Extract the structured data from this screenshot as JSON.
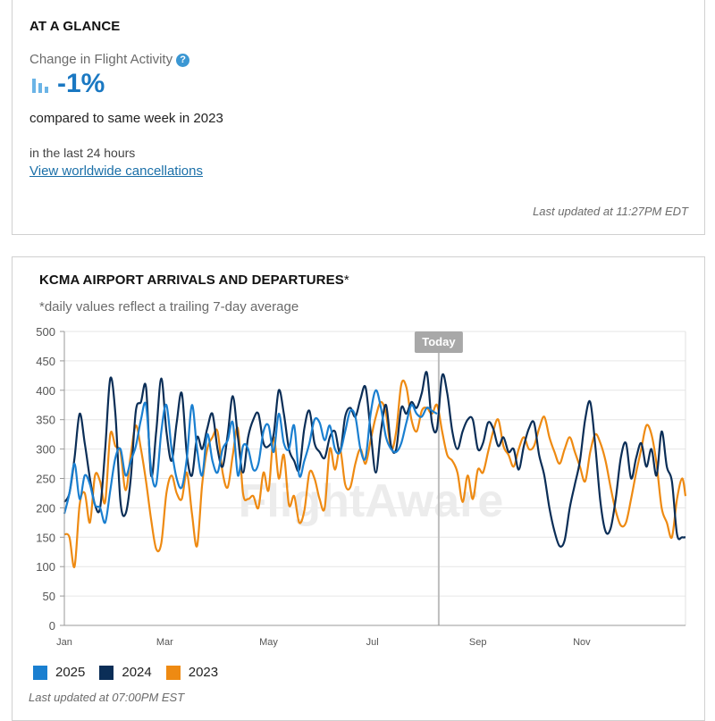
{
  "glance": {
    "title": "AT A GLANCE",
    "change_label": "Change in Flight Activity",
    "help_icon": "question-circle-icon",
    "bar_icon": "bar-chart-icon",
    "change_value": "-1%",
    "compared_text": "compared to same week in 2023",
    "clipped_text": "in the last 24 hours",
    "link_text": "View worldwide cancellations",
    "updated": "Last updated at 11:27PM EDT"
  },
  "chart_card": {
    "title": "KCMA AIRPORT ARRIVALS AND DEPARTURES",
    "title_suffix": "*",
    "note": "*daily values reflect a trailing 7-day average",
    "today_label": "Today",
    "watermark": "FlightAware",
    "updated": "Last updated at 07:00PM EST"
  },
  "chart_data": {
    "type": "line",
    "title": "KCMA AIRPORT ARRIVALS AND DEPARTURES*",
    "xlabel": "",
    "ylabel": "",
    "ylim": [
      0,
      500
    ],
    "xlim": [
      1,
      366
    ],
    "x_unit": "day of year",
    "yticks": [
      0,
      50,
      100,
      150,
      200,
      250,
      300,
      350,
      400,
      450,
      500
    ],
    "xticks": [
      {
        "label": "Jan",
        "day": 1
      },
      {
        "label": "Mar",
        "day": 60
      },
      {
        "label": "May",
        "day": 121
      },
      {
        "label": "Jul",
        "day": 182
      },
      {
        "label": "Sep",
        "day": 244
      },
      {
        "label": "Nov",
        "day": 305
      }
    ],
    "today_day": 221,
    "grid": true,
    "legend_position": "bottom-left",
    "colors": {
      "2025": "#1a7fd0",
      "2024": "#0b2e57",
      "2023": "#ee8a12"
    },
    "series": [
      {
        "name": "2025",
        "color": "#1a7fd0",
        "x": [
          1,
          4,
          7,
          10,
          13,
          16,
          19,
          22,
          25,
          28,
          31,
          34,
          37,
          40,
          43,
          46,
          49,
          52,
          55,
          58,
          61,
          64,
          67,
          70,
          73,
          76,
          79,
          82,
          85,
          88,
          91,
          94,
          97,
          100,
          103,
          106,
          109,
          112,
          115,
          118,
          121,
          124,
          127,
          130,
          133,
          136,
          139,
          142,
          145,
          148,
          151,
          154,
          157,
          160,
          163,
          166,
          169,
          172,
          175,
          178,
          181,
          184,
          187,
          190,
          193,
          196,
          199,
          202,
          205,
          208,
          211,
          214,
          217,
          220
        ],
        "y": [
          190,
          225,
          275,
          215,
          255,
          240,
          205,
          200,
          175,
          230,
          285,
          300,
          255,
          280,
          305,
          350,
          375,
          265,
          240,
          330,
          375,
          300,
          250,
          235,
          285,
          375,
          300,
          255,
          325,
          280,
          260,
          300,
          315,
          345,
          255,
          305,
          300,
          265,
          275,
          330,
          340,
          295,
          360,
          310,
          300,
          340,
          255,
          280,
          310,
          350,
          345,
          315,
          340,
          300,
          295,
          330,
          365,
          355,
          300,
          285,
          360,
          400,
          370,
          320,
          300,
          295,
          310,
          345,
          375,
          360,
          355,
          370,
          365,
          360
        ]
      },
      {
        "name": "2024",
        "color": "#0b2e57",
        "x": [
          1,
          4,
          7,
          10,
          13,
          16,
          19,
          22,
          25,
          28,
          31,
          34,
          37,
          40,
          43,
          46,
          49,
          52,
          55,
          58,
          61,
          64,
          67,
          70,
          73,
          76,
          79,
          82,
          85,
          88,
          91,
          94,
          97,
          100,
          103,
          106,
          109,
          112,
          115,
          118,
          121,
          124,
          127,
          130,
          133,
          136,
          139,
          142,
          145,
          148,
          151,
          154,
          157,
          160,
          163,
          166,
          169,
          172,
          175,
          178,
          181,
          184,
          187,
          190,
          193,
          196,
          199,
          202,
          205,
          208,
          211,
          214,
          217,
          220,
          223,
          226,
          229,
          232,
          235,
          238,
          241,
          244,
          247,
          250,
          253,
          256,
          259,
          262,
          265,
          268,
          271,
          274,
          277,
          280,
          283,
          286,
          289,
          292,
          295,
          298,
          301,
          304,
          307,
          310,
          313,
          316,
          319,
          322,
          325,
          328,
          331,
          334,
          337,
          340,
          343,
          346,
          349,
          352,
          355,
          358,
          361,
          364,
          366
        ],
        "y": [
          210,
          225,
          285,
          360,
          310,
          250,
          205,
          200,
          300,
          420,
          360,
          210,
          190,
          250,
          365,
          380,
          405,
          255,
          330,
          420,
          330,
          280,
          345,
          395,
          290,
          255,
          320,
          300,
          335,
          360,
          300,
          270,
          325,
          390,
          320,
          260,
          320,
          350,
          360,
          310,
          305,
          325,
          400,
          360,
          300,
          280,
          265,
          335,
          365,
          310,
          295,
          285,
          320,
          330,
          295,
          355,
          370,
          355,
          385,
          405,
          330,
          260,
          330,
          375,
          305,
          300,
          370,
          360,
          380,
          370,
          395,
          430,
          345,
          335,
          425,
          395,
          330,
          300,
          330,
          350,
          350,
          300,
          310,
          345,
          335,
          305,
          320,
          295,
          300,
          265,
          305,
          335,
          345,
          290,
          255,
          200,
          160,
          135,
          145,
          200,
          240,
          280,
          350,
          380,
          305,
          210,
          160,
          165,
          215,
          285,
          310,
          250,
          285,
          310,
          270,
          300,
          255,
          330,
          270,
          245,
          155,
          150,
          150
        ]
      },
      {
        "name": "2023",
        "color": "#ee8a12",
        "x": [
          1,
          4,
          7,
          10,
          13,
          16,
          19,
          22,
          25,
          28,
          31,
          34,
          37,
          40,
          43,
          46,
          49,
          52,
          55,
          58,
          61,
          64,
          67,
          70,
          73,
          76,
          79,
          82,
          85,
          88,
          91,
          94,
          97,
          100,
          103,
          106,
          109,
          112,
          115,
          118,
          121,
          124,
          127,
          130,
          133,
          136,
          139,
          142,
          145,
          148,
          151,
          154,
          157,
          160,
          163,
          166,
          169,
          172,
          175,
          178,
          181,
          184,
          187,
          190,
          193,
          196,
          199,
          202,
          205,
          208,
          211,
          214,
          217,
          220,
          223,
          226,
          229,
          232,
          235,
          238,
          241,
          244,
          247,
          250,
          253,
          256,
          259,
          262,
          265,
          268,
          271,
          274,
          277,
          280,
          283,
          286,
          289,
          292,
          295,
          298,
          301,
          304,
          307,
          310,
          313,
          316,
          319,
          322,
          325,
          328,
          331,
          334,
          337,
          340,
          343,
          346,
          349,
          352,
          355,
          358,
          361,
          364,
          366
        ],
        "y": [
          155,
          150,
          100,
          205,
          225,
          175,
          255,
          245,
          210,
          325,
          305,
          295,
          230,
          290,
          340,
          300,
          245,
          180,
          130,
          140,
          225,
          255,
          225,
          215,
          260,
          190,
          135,
          240,
          300,
          320,
          330,
          260,
          235,
          290,
          335,
          225,
          215,
          220,
          200,
          260,
          230,
          320,
          250,
          290,
          205,
          220,
          175,
          195,
          260,
          250,
          215,
          200,
          300,
          265,
          300,
          240,
          235,
          275,
          300,
          275,
          315,
          355,
          380,
          360,
          300,
          330,
          410,
          405,
          350,
          330,
          365,
          370,
          360,
          375,
          330,
          290,
          280,
          260,
          210,
          255,
          215,
          265,
          260,
          295,
          330,
          350,
          305,
          290,
          270,
          300,
          320,
          300,
          305,
          335,
          355,
          320,
          295,
          275,
          300,
          320,
          295,
          270,
          245,
          295,
          325,
          310,
          280,
          235,
          195,
          170,
          175,
          215,
          260,
          300,
          340,
          325,
          275,
          200,
          175,
          150,
          215,
          250,
          220
        ]
      }
    ]
  }
}
